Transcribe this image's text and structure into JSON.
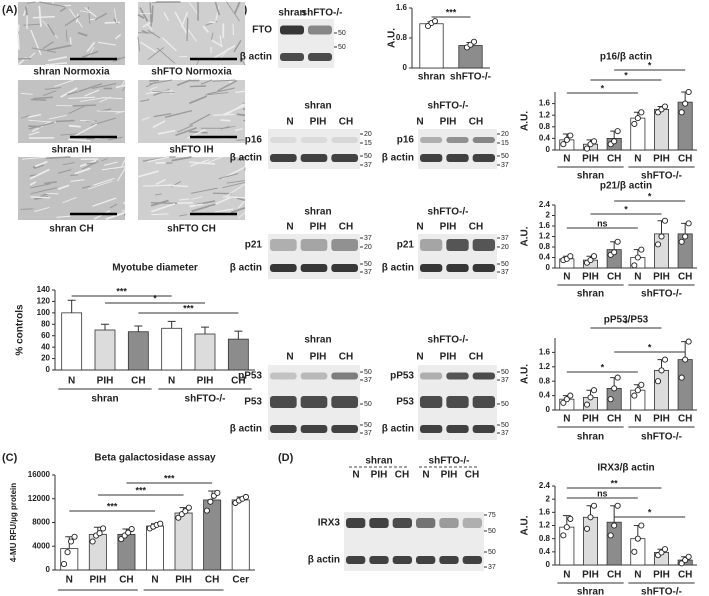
{
  "panel_labels": [
    "(A)",
    "(B)",
    "(C)",
    "(D)"
  ],
  "micrographs": [
    "shran Normoxia",
    "shFTO Normoxia",
    "shran IH",
    "shFTO IH",
    "shran CH",
    "shFTO CH"
  ],
  "blots": [
    {
      "titles": [],
      "lanes": [
        "shran",
        "shFTO-/-"
      ],
      "rows": [
        "FTO",
        "β actin"
      ],
      "markers": [
        50,
        50
      ]
    },
    {
      "titles": [
        "shran"
      ],
      "lanes": [
        "N",
        "PIH",
        "CH"
      ],
      "rows": [
        "p16",
        "β actin"
      ],
      "markers": [
        20,
        15,
        50,
        37
      ]
    },
    {
      "titles": [
        "shFTO-/-"
      ],
      "lanes": [
        "N",
        "PIH",
        "CH"
      ],
      "rows": [
        "p16",
        "β actin"
      ],
      "markers": [
        20,
        15,
        50,
        37
      ]
    },
    {
      "titles": [
        "shran"
      ],
      "lanes": [
        "N",
        "PIH",
        "CH"
      ],
      "rows": [
        "p21",
        "β actin"
      ],
      "markers": [
        37,
        20,
        50,
        37
      ]
    },
    {
      "titles": [
        "shFTO-/-"
      ],
      "lanes": [
        "N",
        "PIH",
        "CH"
      ],
      "rows": [
        "p21",
        "β actin"
      ],
      "markers": [
        37,
        20,
        50,
        37
      ]
    },
    {
      "titles": [
        "shran"
      ],
      "lanes": [
        "N",
        "PIH",
        "CH"
      ],
      "rows": [
        "pP53",
        "P53",
        "β actin"
      ],
      "markers": [
        50,
        37,
        50,
        50,
        37
      ]
    },
    {
      "titles": [
        "shFTO-/-"
      ],
      "lanes": [
        "N",
        "PIH",
        "CH"
      ],
      "rows": [
        "pP53",
        "P53",
        "β actin"
      ],
      "markers": [
        50,
        37,
        50,
        50,
        37
      ]
    },
    {
      "titles": [
        "shran",
        "shFTO-/-"
      ],
      "lanes": [
        "N",
        "PIH",
        "CH",
        "N",
        "PIH",
        "CH"
      ],
      "rows": [
        "IRX3",
        "β actin"
      ],
      "markers": [
        75,
        50,
        50,
        37
      ]
    }
  ],
  "chart_data": [
    {
      "type": "bar",
      "title": "Myotube diameter",
      "ylabel": "% controls",
      "categories": [
        "N",
        "PIH",
        "CH",
        "N",
        "PIH",
        "CH"
      ],
      "groups": [
        "shran",
        "shFTO-/-"
      ],
      "values": [
        100,
        70,
        67,
        73,
        63,
        54
      ],
      "errors": [
        22,
        10,
        10,
        12,
        12,
        14
      ],
      "colors": [
        "#ffffff",
        "#dcdcdc",
        "#8c8c8c",
        "#ffffff",
        "#dcdcdc",
        "#8c8c8c"
      ],
      "significance": [
        "***",
        "*",
        "***"
      ],
      "ylim": [
        0,
        140
      ],
      "yticks": [
        0,
        20,
        40,
        60,
        80,
        100,
        120,
        140
      ]
    },
    {
      "type": "bar",
      "ylabel": "A.U.",
      "categories": [
        "shran",
        "shFTO-/-"
      ],
      "values": [
        1.18,
        0.6
      ],
      "errors": [
        0.05,
        0.08
      ],
      "points": [
        [
          1.12,
          1.2,
          1.25
        ],
        [
          0.55,
          0.62,
          0.7
        ]
      ],
      "colors": [
        "#ffffff",
        "#8c8c8c"
      ],
      "significance": [
        "***"
      ],
      "ylim": [
        0,
        1.6
      ],
      "yticks": [
        0,
        0.8,
        1.6
      ]
    },
    {
      "type": "bar",
      "title": "p16/β actin",
      "ylabel": "A.U.",
      "categories": [
        "N",
        "PIH",
        "CH",
        "N",
        "PIH",
        "CH"
      ],
      "groups": [
        "shran",
        "shFTO-/-"
      ],
      "values": [
        0.35,
        0.2,
        0.4,
        1.1,
        1.4,
        1.65
      ],
      "errors": [
        0.2,
        0.15,
        0.25,
        0.2,
        0.1,
        0.35
      ],
      "points": [
        [
          0.2,
          0.35,
          0.5
        ],
        [
          0.05,
          0.2,
          0.3
        ],
        [
          0.2,
          0.3,
          0.65
        ],
        [
          0.9,
          1.1,
          1.3
        ],
        [
          1.3,
          1.4,
          1.5
        ],
        [
          1.3,
          1.6,
          2.0
        ]
      ],
      "colors": [
        "#ffffff",
        "#dcdcdc",
        "#8c8c8c",
        "#ffffff",
        "#dcdcdc",
        "#8c8c8c"
      ],
      "significance": [
        "*",
        "*",
        "*"
      ],
      "ylim": [
        0,
        2
      ],
      "yticks": [
        0,
        0.4,
        0.8,
        1.2,
        1.6
      ]
    },
    {
      "type": "bar",
      "title": "p21/β actin",
      "ylabel": "A.U.",
      "categories": [
        "N",
        "PIH",
        "CH",
        "N",
        "PIH",
        "CH"
      ],
      "groups": [
        "shran",
        "shFTO-/-"
      ],
      "values": [
        0.35,
        0.3,
        0.7,
        0.4,
        1.3,
        1.3
      ],
      "errors": [
        0.1,
        0.15,
        0.3,
        0.3,
        0.5,
        0.4
      ],
      "points": [
        [
          0.3,
          0.35,
          0.45
        ],
        [
          0.2,
          0.3,
          0.45
        ],
        [
          0.5,
          0.6,
          1.0
        ],
        [
          0.1,
          0.4,
          0.7
        ],
        [
          0.9,
          1.2,
          1.8
        ],
        [
          1.0,
          1.2,
          1.7
        ]
      ],
      "colors": [
        "#ffffff",
        "#dcdcdc",
        "#8c8c8c",
        "#ffffff",
        "#dcdcdc",
        "#8c8c8c"
      ],
      "significance": [
        "ns",
        "*",
        "*"
      ],
      "ylim": [
        0,
        2.4
      ],
      "yticks": [
        0,
        0.4,
        0.8,
        1.2,
        1.6,
        2.0,
        2.4
      ]
    },
    {
      "type": "bar",
      "title": "pP53/P53",
      "ylabel": "A.U.",
      "categories": [
        "N",
        "PIH",
        "CH",
        "N",
        "PIH",
        "CH"
      ],
      "groups": [
        "shran",
        "shFTO-/-"
      ],
      "values": [
        0.3,
        0.35,
        0.6,
        0.55,
        1.1,
        1.4
      ],
      "errors": [
        0.1,
        0.2,
        0.3,
        0.15,
        0.3,
        0.5
      ],
      "points": [
        [
          0.2,
          0.3,
          0.4
        ],
        [
          0.15,
          0.35,
          0.55
        ],
        [
          0.3,
          0.6,
          0.9
        ],
        [
          0.4,
          0.55,
          0.7
        ],
        [
          0.8,
          1.1,
          1.4
        ],
        [
          0.9,
          1.4,
          1.9
        ]
      ],
      "colors": [
        "#ffffff",
        "#dcdcdc",
        "#8c8c8c",
        "#ffffff",
        "#dcdcdc",
        "#8c8c8c"
      ],
      "significance": [
        "*",
        "*",
        "*"
      ],
      "ylim": [
        0,
        2
      ],
      "yticks": [
        0,
        0.4,
        0.8,
        1.2,
        1.6
      ]
    },
    {
      "type": "bar",
      "title": "Beta galactosidase assay",
      "ylabel": "4-MU RFU/µg protein",
      "categories": [
        "N",
        "PIH",
        "CH",
        "N",
        "PIH",
        "CH",
        "Cer"
      ],
      "values": [
        3600,
        6000,
        6000,
        7400,
        9600,
        11800,
        11800
      ],
      "errors": [
        2000,
        1200,
        900,
        400,
        900,
        1500,
        500
      ],
      "points": [
        [
          1000,
          3000,
          4800,
          5600
        ],
        [
          4800,
          5800,
          6200,
          7000
        ],
        [
          5200,
          5800,
          6300,
          6900
        ],
        [
          7000,
          7300,
          7600,
          7800
        ],
        [
          8800,
          9400,
          9900,
          10500
        ],
        [
          10000,
          11500,
          12500,
          13000
        ],
        [
          11300,
          11700,
          12000,
          12300
        ]
      ],
      "colors": [
        "#ffffff",
        "#dcdcdc",
        "#8c8c8c",
        "#ffffff",
        "#dcdcdc",
        "#8c8c8c",
        "#ffffff"
      ],
      "significance": [
        "***",
        "***",
        "***"
      ],
      "ylim": [
        0,
        16000
      ],
      "yticks": [
        0,
        4000,
        8000,
        12000,
        16000
      ]
    },
    {
      "type": "bar",
      "title": "IRX3/β actin",
      "ylabel": "A.U.",
      "categories": [
        "N",
        "PIH",
        "CH",
        "N",
        "PIH",
        "CH"
      ],
      "groups": [
        "shran",
        "shFTO-/-"
      ],
      "values": [
        1.15,
        1.45,
        1.3,
        0.8,
        0.38,
        0.15
      ],
      "errors": [
        0.35,
        0.35,
        0.5,
        0.4,
        0.1,
        0.1
      ],
      "points": [
        [
          0.9,
          1.15,
          1.4
        ],
        [
          1.1,
          1.45,
          1.8
        ],
        [
          0.9,
          1.2,
          1.8
        ],
        [
          0.4,
          0.8,
          1.2
        ],
        [
          0.3,
          0.38,
          0.48
        ],
        [
          0.05,
          0.15,
          0.25
        ]
      ],
      "colors": [
        "#ffffff",
        "#dcdcdc",
        "#8c8c8c",
        "#ffffff",
        "#dcdcdc",
        "#8c8c8c"
      ],
      "significance": [
        "ns",
        "**",
        "*"
      ],
      "ylim": [
        0,
        2.4
      ],
      "yticks": [
        0,
        0.4,
        0.8,
        1.2,
        1.6,
        2.0,
        2.4
      ]
    }
  ]
}
